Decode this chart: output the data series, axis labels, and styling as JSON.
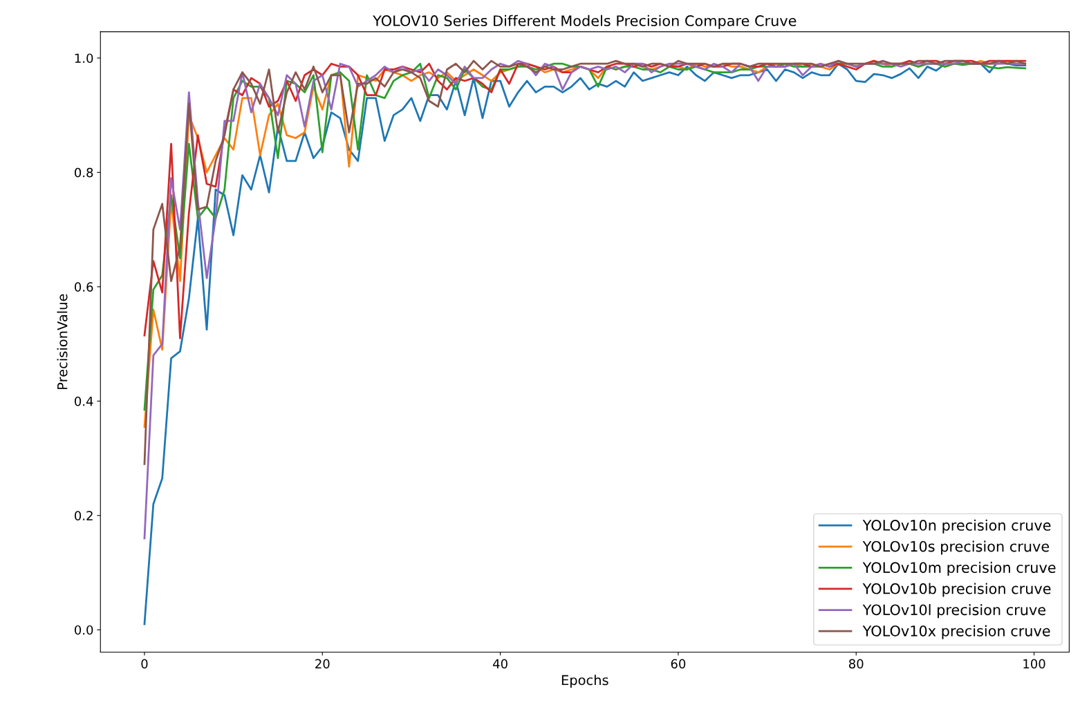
{
  "chart_data": {
    "type": "line",
    "title": "YOLOV10 Series Different Models Precision Compare Cruve",
    "xlabel": "Epochs",
    "ylabel": "PrecisionValue",
    "x": [
      0,
      1,
      2,
      3,
      4,
      5,
      6,
      7,
      8,
      9,
      10,
      11,
      12,
      13,
      14,
      15,
      16,
      17,
      18,
      19,
      20,
      21,
      22,
      23,
      24,
      25,
      26,
      27,
      28,
      29,
      30,
      31,
      32,
      33,
      34,
      35,
      36,
      37,
      38,
      39,
      40,
      41,
      42,
      43,
      44,
      45,
      46,
      47,
      48,
      49,
      50,
      51,
      52,
      53,
      54,
      55,
      56,
      57,
      58,
      59,
      60,
      61,
      62,
      63,
      64,
      65,
      66,
      67,
      68,
      69,
      70,
      71,
      72,
      73,
      74,
      75,
      76,
      77,
      78,
      79,
      80,
      81,
      82,
      83,
      84,
      85,
      86,
      87,
      88,
      89,
      90,
      91,
      92,
      93,
      94,
      95,
      96,
      97,
      98,
      99
    ],
    "series": [
      {
        "name": "YOLOv10n precision cruve",
        "color": "#1f77b4",
        "values": [
          0.01,
          0.22,
          0.265,
          0.475,
          0.487,
          0.58,
          0.72,
          0.525,
          0.77,
          0.76,
          0.69,
          0.795,
          0.77,
          0.83,
          0.765,
          0.88,
          0.82,
          0.82,
          0.87,
          0.825,
          0.845,
          0.905,
          0.895,
          0.84,
          0.82,
          0.93,
          0.93,
          0.855,
          0.9,
          0.91,
          0.93,
          0.89,
          0.935,
          0.935,
          0.91,
          0.96,
          0.9,
          0.965,
          0.895,
          0.96,
          0.96,
          0.915,
          0.94,
          0.96,
          0.94,
          0.95,
          0.95,
          0.94,
          0.95,
          0.965,
          0.945,
          0.955,
          0.95,
          0.96,
          0.95,
          0.975,
          0.96,
          0.965,
          0.97,
          0.975,
          0.97,
          0.985,
          0.97,
          0.96,
          0.975,
          0.97,
          0.965,
          0.97,
          0.97,
          0.975,
          0.98,
          0.96,
          0.98,
          0.975,
          0.965,
          0.975,
          0.97,
          0.97,
          0.99,
          0.98,
          0.96,
          0.958,
          0.972,
          0.97,
          0.965,
          0.972,
          0.982,
          0.965,
          0.985,
          0.978,
          0.99,
          0.99,
          0.988,
          0.99,
          0.99,
          0.975,
          0.995,
          0.99,
          0.987,
          0.987
        ]
      },
      {
        "name": "YOLOv10s precision cruve",
        "color": "#ff7f0e",
        "values": [
          0.355,
          0.56,
          0.49,
          0.75,
          0.61,
          0.9,
          0.86,
          0.8,
          0.83,
          0.86,
          0.84,
          0.93,
          0.93,
          0.83,
          0.9,
          0.92,
          0.865,
          0.86,
          0.87,
          0.95,
          0.91,
          0.97,
          0.975,
          0.81,
          0.97,
          0.965,
          0.96,
          0.98,
          0.975,
          0.97,
          0.96,
          0.97,
          0.975,
          0.965,
          0.975,
          0.96,
          0.97,
          0.98,
          0.97,
          0.96,
          0.975,
          0.98,
          0.985,
          0.99,
          0.985,
          0.975,
          0.98,
          0.975,
          0.98,
          0.985,
          0.98,
          0.965,
          0.985,
          0.98,
          0.985,
          0.99,
          0.985,
          0.98,
          0.985,
          0.99,
          0.985,
          0.98,
          0.99,
          0.985,
          0.985,
          0.99,
          0.985,
          0.985,
          0.98,
          0.975,
          0.985,
          0.99,
          0.985,
          0.99,
          0.985,
          0.99,
          0.985,
          0.98,
          0.99,
          0.99,
          0.985,
          0.99,
          0.995,
          0.99,
          0.985,
          0.99,
          0.99,
          0.985,
          0.99,
          0.99,
          0.985,
          0.99,
          0.99,
          0.99,
          0.995,
          0.99,
          0.99,
          0.995,
          0.99,
          0.99
        ]
      },
      {
        "name": "YOLOv10m precision cruve",
        "color": "#2ca02c",
        "values": [
          0.385,
          0.595,
          0.62,
          0.76,
          0.65,
          0.85,
          0.72,
          0.74,
          0.72,
          0.77,
          0.93,
          0.96,
          0.95,
          0.95,
          0.93,
          0.825,
          0.96,
          0.955,
          0.94,
          0.97,
          0.835,
          0.97,
          0.975,
          0.96,
          0.84,
          0.97,
          0.935,
          0.93,
          0.96,
          0.97,
          0.975,
          0.99,
          0.93,
          0.97,
          0.965,
          0.945,
          0.98,
          0.965,
          0.95,
          0.945,
          0.98,
          0.98,
          0.985,
          0.985,
          0.98,
          0.985,
          0.99,
          0.99,
          0.985,
          0.985,
          0.98,
          0.95,
          0.985,
          0.98,
          0.985,
          0.985,
          0.98,
          0.98,
          0.975,
          0.985,
          0.98,
          0.98,
          0.985,
          0.98,
          0.975,
          0.975,
          0.975,
          0.98,
          0.98,
          0.985,
          0.985,
          0.985,
          0.99,
          0.985,
          0.985,
          0.985,
          0.985,
          0.99,
          0.99,
          0.99,
          0.985,
          0.99,
          0.99,
          0.985,
          0.985,
          0.99,
          0.99,
          0.985,
          0.99,
          0.99,
          0.985,
          0.99,
          0.99,
          0.99,
          0.99,
          0.984,
          0.982,
          0.984,
          0.983,
          0.982
        ]
      },
      {
        "name": "YOLOv10b precision cruve",
        "color": "#d62728",
        "values": [
          0.515,
          0.645,
          0.59,
          0.85,
          0.51,
          0.73,
          0.865,
          0.78,
          0.775,
          0.87,
          0.945,
          0.935,
          0.965,
          0.955,
          0.915,
          0.925,
          0.96,
          0.925,
          0.97,
          0.98,
          0.97,
          0.99,
          0.985,
          0.985,
          0.97,
          0.935,
          0.935,
          0.98,
          0.98,
          0.985,
          0.98,
          0.975,
          0.99,
          0.96,
          0.945,
          0.965,
          0.96,
          0.965,
          0.955,
          0.94,
          0.98,
          0.955,
          0.99,
          0.99,
          0.985,
          0.98,
          0.985,
          0.975,
          0.975,
          0.985,
          0.98,
          0.975,
          0.985,
          0.99,
          0.99,
          0.985,
          0.99,
          0.985,
          0.99,
          0.985,
          0.985,
          0.99,
          0.985,
          0.99,
          0.985,
          0.985,
          0.99,
          0.99,
          0.985,
          0.985,
          0.99,
          0.985,
          0.985,
          0.99,
          0.99,
          0.985,
          0.99,
          0.985,
          0.99,
          0.985,
          0.98,
          0.99,
          0.995,
          0.99,
          0.99,
          0.99,
          0.995,
          0.99,
          0.995,
          0.995,
          0.99,
          0.995,
          0.995,
          0.995,
          0.99,
          0.995,
          0.995,
          0.995,
          0.995,
          0.995
        ]
      },
      {
        "name": "YOLOv10l precision cruve",
        "color": "#9467bd",
        "values": [
          0.16,
          0.48,
          0.5,
          0.79,
          0.7,
          0.94,
          0.75,
          0.615,
          0.72,
          0.89,
          0.89,
          0.975,
          0.905,
          0.955,
          0.93,
          0.9,
          0.97,
          0.955,
          0.88,
          0.96,
          0.97,
          0.91,
          0.99,
          0.985,
          0.95,
          0.96,
          0.97,
          0.985,
          0.975,
          0.985,
          0.975,
          0.98,
          0.96,
          0.98,
          0.97,
          0.955,
          0.985,
          0.965,
          0.965,
          0.98,
          0.99,
          0.985,
          0.995,
          0.99,
          0.97,
          0.99,
          0.985,
          0.945,
          0.975,
          0.985,
          0.98,
          0.985,
          0.98,
          0.985,
          0.975,
          0.99,
          0.99,
          0.975,
          0.985,
          0.99,
          0.99,
          0.99,
          0.985,
          0.98,
          0.99,
          0.985,
          0.975,
          0.99,
          0.985,
          0.96,
          0.985,
          0.985,
          0.985,
          0.99,
          0.97,
          0.985,
          0.99,
          0.985,
          0.995,
          0.99,
          0.985,
          0.99,
          0.99,
          0.99,
          0.99,
          0.985,
          0.99,
          0.99,
          0.99,
          0.99,
          0.99,
          0.99,
          0.995,
          0.99,
          0.99,
          0.99,
          0.99,
          0.99,
          0.99,
          0.99
        ]
      },
      {
        "name": "YOLOv10x precision cruve",
        "color": "#8c564b",
        "values": [
          0.29,
          0.7,
          0.745,
          0.61,
          0.67,
          0.92,
          0.735,
          0.74,
          0.82,
          0.865,
          0.945,
          0.975,
          0.955,
          0.92,
          0.98,
          0.87,
          0.94,
          0.975,
          0.945,
          0.985,
          0.94,
          0.97,
          0.97,
          0.87,
          0.955,
          0.955,
          0.965,
          0.95,
          0.975,
          0.98,
          0.975,
          0.965,
          0.925,
          0.915,
          0.98,
          0.99,
          0.975,
          0.995,
          0.98,
          0.995,
          0.985,
          0.985,
          0.99,
          0.985,
          0.975,
          0.985,
          0.98,
          0.98,
          0.985,
          0.99,
          0.99,
          0.99,
          0.99,
          0.995,
          0.99,
          0.99,
          0.985,
          0.99,
          0.99,
          0.985,
          0.995,
          0.99,
          0.99,
          0.99,
          0.985,
          0.99,
          0.99,
          0.99,
          0.985,
          0.99,
          0.99,
          0.99,
          0.99,
          0.99,
          0.99,
          0.99,
          0.985,
          0.99,
          0.995,
          0.99,
          0.99,
          0.99,
          0.99,
          0.995,
          0.99,
          0.99,
          0.99,
          0.995,
          0.995,
          0.99,
          0.995,
          0.995,
          0.995,
          0.99,
          0.99,
          0.99,
          0.995,
          0.99,
          0.995,
          0.99
        ]
      }
    ],
    "xlim": [
      -4.95,
      103.95
    ],
    "ylim": [
      -0.039,
      1.046
    ],
    "xticks": [
      0,
      20,
      40,
      60,
      80,
      100
    ],
    "yticks": [
      {
        "value": 0,
        "label": "0.0"
      },
      0.2,
      0.4,
      0.6,
      0.8,
      {
        "value": 1,
        "label": "1.0"
      }
    ],
    "grid": false,
    "legend": "bottom right",
    "marker": "none",
    "line_style": "solid"
  }
}
